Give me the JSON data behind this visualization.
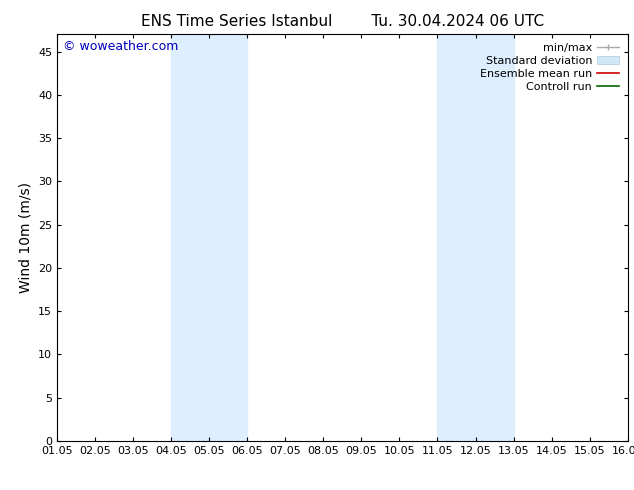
{
  "title": "ENS Time Series Istanbul",
  "subtitle": "Tu. 30.04.2024 06 UTC",
  "ylabel": "Wind 10m (m/s)",
  "ylim": [
    0,
    47
  ],
  "yticks": [
    0,
    5,
    10,
    15,
    20,
    25,
    30,
    35,
    40,
    45
  ],
  "xtick_labels": [
    "01.05",
    "02.05",
    "03.05",
    "04.05",
    "05.05",
    "06.05",
    "07.05",
    "08.05",
    "09.05",
    "10.05",
    "11.05",
    "12.05",
    "13.05",
    "14.05",
    "15.05",
    "16.05"
  ],
  "xlim": [
    0,
    15
  ],
  "background_color": "#ffffff",
  "plot_bg_color": "#ffffff",
  "shaded_regions": [
    {
      "x_start": 3,
      "x_end": 5,
      "color": "#ddeeff"
    },
    {
      "x_start": 10,
      "x_end": 12,
      "color": "#ddeeff"
    }
  ],
  "watermark_text": "© woweather.com",
  "watermark_color": "#0000bb",
  "title_fontsize": 11,
  "subtitle_fontsize": 11,
  "ylabel_fontsize": 10,
  "tick_fontsize": 8,
  "watermark_fontsize": 9,
  "legend_fontsize": 8
}
